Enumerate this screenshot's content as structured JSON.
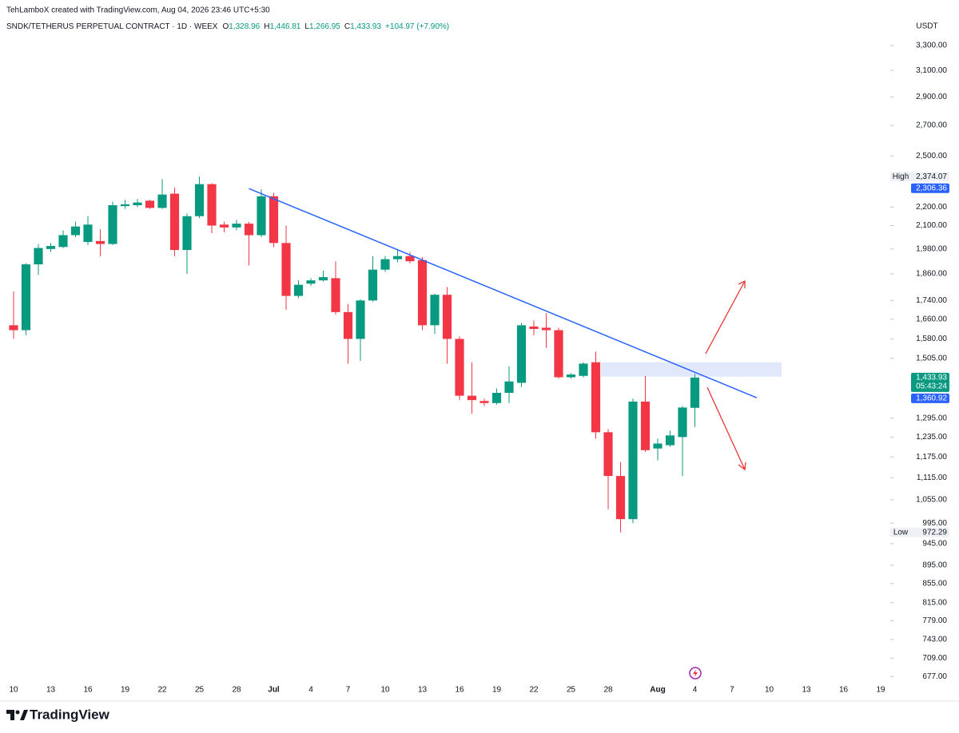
{
  "chart_data": {
    "type": "candlestick",
    "attribution": "TehLamboX created with TradingView.com, Aug 04, 2026 23:46 UTC+5:30",
    "symbol": "SNDK/TETHERUS PERPETUAL CONTRACT · 1D · WEEX",
    "ohlc_header": [
      {
        "key": "O",
        "value": "1,328.96"
      },
      {
        "key": "H",
        "value": "1,446.81"
      },
      {
        "key": "L",
        "value": "1,266.95"
      },
      {
        "key": "C",
        "value": "1,433.93"
      }
    ],
    "change": "+104.97 (+7.90%)",
    "currency": "USDT",
    "brand": "TradingView",
    "up_color": "#089981",
    "down_color": "#f23645",
    "log_scale": true,
    "x": [
      "2026-06-10",
      "2026-06-11",
      "2026-06-12",
      "2026-06-13",
      "2026-06-14",
      "2026-06-15",
      "2026-06-16",
      "2026-06-17",
      "2026-06-18",
      "2026-06-19",
      "2026-06-20",
      "2026-06-21",
      "2026-06-22",
      "2026-06-23",
      "2026-06-24",
      "2026-06-25",
      "2026-06-26",
      "2026-06-27",
      "2026-06-28",
      "2026-06-29",
      "2026-06-30",
      "2026-07-01",
      "2026-07-02",
      "2026-07-03",
      "2026-07-04",
      "2026-07-05",
      "2026-07-06",
      "2026-07-07",
      "2026-07-08",
      "2026-07-09",
      "2026-07-10",
      "2026-07-11",
      "2026-07-12",
      "2026-07-13",
      "2026-07-14",
      "2026-07-15",
      "2026-07-16",
      "2026-07-17",
      "2026-07-18",
      "2026-07-19",
      "2026-07-20",
      "2026-07-21",
      "2026-07-22",
      "2026-07-23",
      "2026-07-24",
      "2026-07-25",
      "2026-07-26",
      "2026-07-27",
      "2026-07-28",
      "2026-07-29",
      "2026-07-30",
      "2026-07-31",
      "2026-08-01",
      "2026-08-02",
      "2026-08-03",
      "2026-08-04"
    ],
    "open": [
      1635,
      1615,
      1905,
      1980,
      1990,
      2050,
      2015,
      2020,
      2005,
      2205,
      2210,
      2235,
      2195,
      2275,
      1975,
      2150,
      2330,
      2105,
      2090,
      2110,
      2050,
      2260,
      2010,
      1760,
      1815,
      1830,
      1840,
      1690,
      1580,
      1740,
      1880,
      1930,
      1945,
      1925,
      1635,
      1765,
      1580,
      1370,
      1352,
      1345,
      1380,
      1415,
      1630,
      1625,
      1615,
      1435,
      1440,
      1490,
      1250,
      1120,
      1005,
      1350,
      1200,
      1210,
      1235,
      1328.96
    ],
    "high": [
      1780,
      1910,
      2005,
      2010,
      2075,
      2120,
      2150,
      2080,
      2230,
      2240,
      2245,
      2240,
      2360,
      2310,
      2165,
      2374.07,
      2335,
      2120,
      2130,
      2120,
      2300,
      2280,
      2100,
      1830,
      1840,
      1875,
      1920,
      1725,
      1745,
      1945,
      1945,
      1980,
      1965,
      1940,
      1770,
      1800,
      1590,
      1490,
      1360,
      1395,
      1475,
      1645,
      1655,
      1685,
      1625,
      1450,
      1490,
      1530,
      1260,
      1160,
      1360,
      1440,
      1230,
      1255,
      1335,
      1446.81
    ],
    "low": [
      1580,
      1595,
      1855,
      1965,
      1985,
      2040,
      2000,
      1945,
      2000,
      2190,
      2200,
      2190,
      2190,
      1945,
      1860,
      2140,
      2060,
      2065,
      2075,
      1900,
      2040,
      1990,
      1700,
      1750,
      1805,
      1825,
      1680,
      1485,
      1495,
      1735,
      1870,
      1915,
      1910,
      1615,
      1600,
      1485,
      1355,
      1310,
      1335,
      1340,
      1345,
      1400,
      1595,
      1545,
      1430,
      1430,
      1435,
      1230,
      1030,
      972.29,
      995,
      1190,
      1165,
      1205,
      1120,
      1266.95
    ],
    "close": [
      1615,
      1905,
      1985,
      1995,
      2050,
      2095,
      2105,
      2005,
      2210,
      2215,
      2225,
      2195,
      2270,
      1975,
      2150,
      2330,
      2100,
      2090,
      2110,
      2050,
      2260,
      2010,
      1760,
      1810,
      1830,
      1845,
      1690,
      1580,
      1740,
      1880,
      1930,
      1945,
      1920,
      1635,
      1765,
      1580,
      1370,
      1355,
      1345,
      1380,
      1420,
      1635,
      1620,
      1615,
      1435,
      1445,
      1485,
      1250,
      1120,
      1005,
      1350,
      1195,
      1215,
      1240,
      1330,
      1433.93
    ],
    "xlim": [
      "2026-06-09",
      "2026-08-20"
    ],
    "ylim": [
      660,
      3380
    ],
    "yticks": [
      {
        "value": 3300,
        "label": "3,300.00"
      },
      {
        "value": 3100,
        "label": "3,100.00"
      },
      {
        "value": 2900,
        "label": "2,900.00"
      },
      {
        "value": 2700,
        "label": "2,700.00"
      },
      {
        "value": 2500,
        "label": "2,500.00"
      },
      {
        "value": 2200,
        "label": "2,200.00"
      },
      {
        "value": 2100,
        "label": "2,100.00"
      },
      {
        "value": 1980,
        "label": "1,980.00"
      },
      {
        "value": 1860,
        "label": "1,860.00"
      },
      {
        "value": 1740,
        "label": "1,740.00"
      },
      {
        "value": 1660,
        "label": "1,660.00"
      },
      {
        "value": 1580,
        "label": "1,580.00"
      },
      {
        "value": 1505,
        "label": "1,505.00"
      },
      {
        "value": 1295,
        "label": "1,295.00"
      },
      {
        "value": 1235,
        "label": "1,235.00"
      },
      {
        "value": 1175,
        "label": "1,175.00"
      },
      {
        "value": 1115,
        "label": "1,115.00"
      },
      {
        "value": 1055,
        "label": "1,055.00"
      },
      {
        "value": 995,
        "label": "995.00"
      },
      {
        "value": 945,
        "label": "945.00"
      },
      {
        "value": 895,
        "label": "895.00"
      },
      {
        "value": 855,
        "label": "855.00"
      },
      {
        "value": 815,
        "label": "815.00"
      },
      {
        "value": 779,
        "label": "779.00"
      },
      {
        "value": 743,
        "label": "743.00"
      },
      {
        "value": 709,
        "label": "709.00"
      },
      {
        "value": 677,
        "label": "677.00"
      }
    ],
    "xticks": [
      {
        "value": "2026-06-10",
        "label": "10"
      },
      {
        "value": "2026-06-13",
        "label": "13"
      },
      {
        "value": "2026-06-16",
        "label": "16"
      },
      {
        "value": "2026-06-19",
        "label": "19"
      },
      {
        "value": "2026-06-22",
        "label": "22"
      },
      {
        "value": "2026-06-25",
        "label": "25"
      },
      {
        "value": "2026-06-28",
        "label": "28"
      },
      {
        "value": "2026-07-01",
        "label": "Jul"
      },
      {
        "value": "2026-07-04",
        "label": "4"
      },
      {
        "value": "2026-07-07",
        "label": "7"
      },
      {
        "value": "2026-07-10",
        "label": "10"
      },
      {
        "value": "2026-07-13",
        "label": "13"
      },
      {
        "value": "2026-07-16",
        "label": "16"
      },
      {
        "value": "2026-07-19",
        "label": "19"
      },
      {
        "value": "2026-07-22",
        "label": "22"
      },
      {
        "value": "2026-07-25",
        "label": "25"
      },
      {
        "value": "2026-07-28",
        "label": "28"
      },
      {
        "value": "2026-08-01",
        "label": "Aug"
      },
      {
        "value": "2026-08-04",
        "label": "4"
      },
      {
        "value": "2026-08-07",
        "label": "7"
      },
      {
        "value": "2026-08-10",
        "label": "10"
      },
      {
        "value": "2026-08-13",
        "label": "13"
      },
      {
        "value": "2026-08-16",
        "label": "16"
      },
      {
        "value": "2026-08-19",
        "label": "19"
      }
    ],
    "trendline": {
      "x": [
        "2026-06-29",
        "2026-08-09"
      ],
      "y": [
        2304,
        1363
      ],
      "color": "#2962ff"
    },
    "zone": {
      "x": [
        "2026-07-27",
        "2026-08-11"
      ],
      "y": [
        1437,
        1490
      ],
      "color": "#dfe6fb"
    },
    "price_labels": [
      {
        "tag": "High",
        "value": 2374.07,
        "label": "2,374.07",
        "style": "plain"
      },
      {
        "value": 2306.36,
        "label": "2,306.36",
        "style": "blue"
      },
      {
        "value": 1433.93,
        "label": "1,433.93",
        "sub": "05:43:24",
        "style": "green"
      },
      {
        "value": 1360.92,
        "label": "1,360.92",
        "style": "blue"
      },
      {
        "tag": "Low",
        "value": 972.29,
        "label": "972.29",
        "style": "plain"
      }
    ]
  }
}
